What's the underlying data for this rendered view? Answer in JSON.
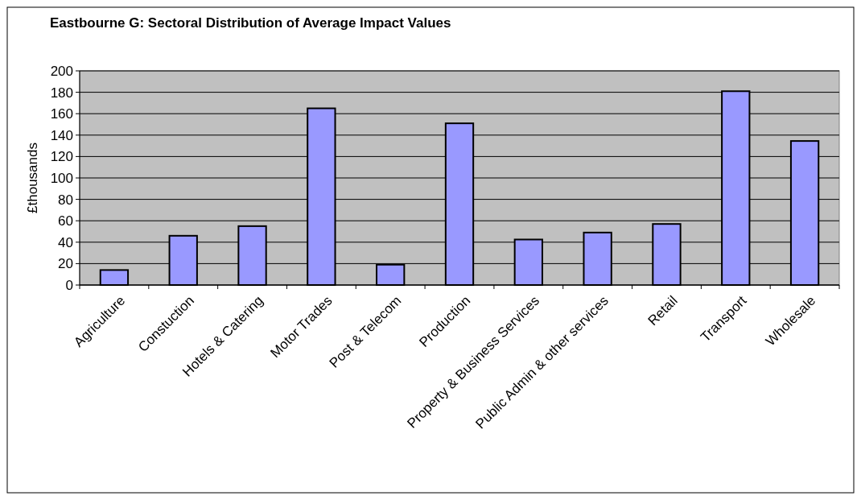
{
  "chart_data": {
    "type": "bar",
    "title": "Eastbourne G: Sectoral Distribution of Average Impact Values",
    "ylabel": "£thousands",
    "categories": [
      "Agriculture",
      "Constuction",
      "Hotels & Catering",
      "Motor Trades",
      "Post & Telecom",
      "Production",
      "Property & Business Services",
      "Public Admin & other services",
      "Retail",
      "Transport",
      "Wholesale"
    ],
    "values": [
      14,
      46,
      55,
      165,
      19,
      151,
      42.5,
      49,
      57,
      181,
      134.5
    ],
    "color": "#9999ff",
    "ylim": [
      0,
      200
    ],
    "yticks": [
      0,
      20,
      40,
      60,
      80,
      100,
      120,
      140,
      160,
      180,
      200
    ],
    "grid": "y"
  }
}
